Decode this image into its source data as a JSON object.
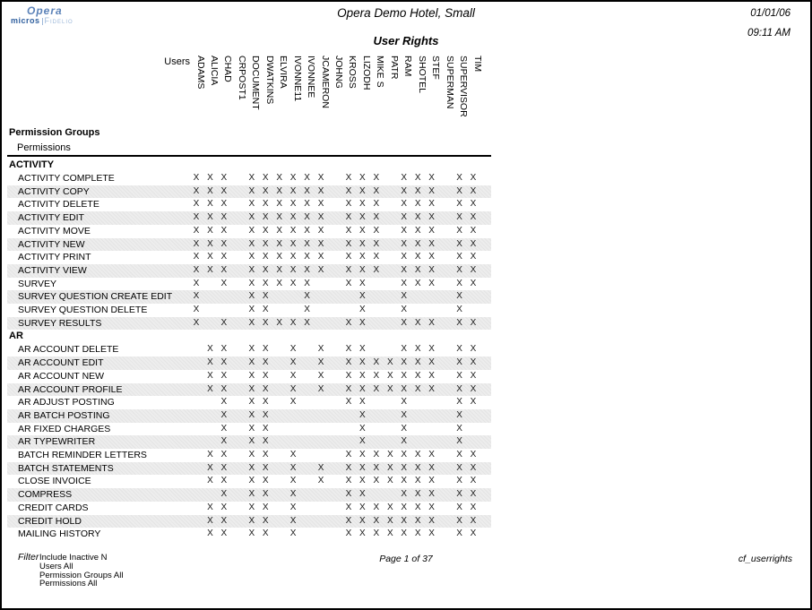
{
  "header": {
    "logo_line1": "Opera",
    "logo_micros": "micros",
    "logo_fidelio": "Fidelio",
    "hotel_title": "Opera Demo Hotel, Small",
    "report_title": "User Rights",
    "date": "01/01/06",
    "time": "09:11 AM"
  },
  "matrix": {
    "users_label": "Users",
    "mark": "X",
    "left_header_line1": "Permission Groups",
    "left_header_line2": "Permissions",
    "columns": [
      "ADAMS",
      "ALICIA",
      "CHAD",
      "CRPOST1",
      "DOCUMENT",
      "DWATKINS",
      "ELVIRA",
      "IVONNE11",
      "IVONNEE",
      "JCAMERON",
      "JOHNG",
      "KROSS",
      "LIZODH",
      "MIKE S",
      "PATR",
      "RAM",
      "SHOTEL",
      "STEF",
      "SUPERMAN",
      "SUPERVISOR",
      "TIM"
    ],
    "groups": [
      {
        "name": "ACTIVITY",
        "rows": [
          {
            "label": "ACTIVITY COMPLETE",
            "cols": [
              1,
              2,
              3,
              5,
              6,
              7,
              8,
              9,
              10,
              12,
              13,
              14,
              16,
              17,
              18,
              20,
              21
            ]
          },
          {
            "label": "ACTIVITY COPY",
            "cols": [
              1,
              2,
              3,
              5,
              6,
              7,
              8,
              9,
              10,
              12,
              13,
              14,
              16,
              17,
              18,
              20,
              21
            ]
          },
          {
            "label": "ACTIVITY DELETE",
            "cols": [
              1,
              2,
              3,
              5,
              6,
              7,
              8,
              9,
              10,
              12,
              13,
              14,
              16,
              17,
              18,
              20,
              21
            ]
          },
          {
            "label": "ACTIVITY EDIT",
            "cols": [
              1,
              2,
              3,
              5,
              6,
              7,
              8,
              9,
              10,
              12,
              13,
              14,
              16,
              17,
              18,
              20,
              21
            ]
          },
          {
            "label": "ACTIVITY MOVE",
            "cols": [
              1,
              2,
              3,
              5,
              6,
              7,
              8,
              9,
              10,
              12,
              13,
              14,
              16,
              17,
              18,
              20,
              21
            ]
          },
          {
            "label": "ACTIVITY NEW",
            "cols": [
              1,
              2,
              3,
              5,
              6,
              7,
              8,
              9,
              10,
              12,
              13,
              14,
              16,
              17,
              18,
              20,
              21
            ]
          },
          {
            "label": "ACTIVITY PRINT",
            "cols": [
              1,
              2,
              3,
              5,
              6,
              7,
              8,
              9,
              10,
              12,
              13,
              14,
              16,
              17,
              18,
              20,
              21
            ]
          },
          {
            "label": "ACTIVITY VIEW",
            "cols": [
              1,
              2,
              3,
              5,
              6,
              7,
              8,
              9,
              10,
              12,
              13,
              14,
              16,
              17,
              18,
              20,
              21
            ]
          },
          {
            "label": "SURVEY",
            "cols": [
              1,
              3,
              5,
              6,
              7,
              8,
              9,
              12,
              13,
              16,
              17,
              18,
              20,
              21
            ]
          },
          {
            "label": "SURVEY QUESTION CREATE EDIT",
            "cols": [
              1,
              5,
              6,
              9,
              13,
              16,
              20
            ]
          },
          {
            "label": "SURVEY QUESTION DELETE",
            "cols": [
              1,
              5,
              6,
              9,
              13,
              16,
              20
            ]
          },
          {
            "label": "SURVEY RESULTS",
            "cols": [
              1,
              3,
              5,
              6,
              7,
              8,
              9,
              12,
              13,
              16,
              17,
              18,
              20,
              21
            ]
          }
        ]
      },
      {
        "name": "AR",
        "rows": [
          {
            "label": "AR ACCOUNT DELETE",
            "cols": [
              2,
              3,
              5,
              6,
              8,
              10,
              12,
              13,
              16,
              17,
              18,
              20,
              21
            ]
          },
          {
            "label": "AR ACCOUNT EDIT",
            "cols": [
              2,
              3,
              5,
              6,
              8,
              10,
              12,
              13,
              14,
              15,
              16,
              17,
              18,
              20,
              21
            ]
          },
          {
            "label": "AR ACCOUNT NEW",
            "cols": [
              2,
              3,
              5,
              6,
              8,
              10,
              12,
              13,
              14,
              15,
              16,
              17,
              18,
              20,
              21
            ]
          },
          {
            "label": "AR ACCOUNT PROFILE",
            "cols": [
              2,
              3,
              5,
              6,
              8,
              10,
              12,
              13,
              14,
              15,
              16,
              17,
              18,
              20,
              21
            ]
          },
          {
            "label": "AR ADJUST POSTING",
            "cols": [
              3,
              5,
              6,
              8,
              12,
              13,
              16,
              20,
              21
            ]
          },
          {
            "label": "AR BATCH POSTING",
            "cols": [
              3,
              5,
              6,
              13,
              16,
              20
            ]
          },
          {
            "label": "AR FIXED CHARGES",
            "cols": [
              3,
              5,
              6,
              13,
              16,
              20
            ]
          },
          {
            "label": "AR TYPEWRITER",
            "cols": [
              3,
              5,
              6,
              13,
              16,
              20
            ]
          },
          {
            "label": "BATCH REMINDER LETTERS",
            "cols": [
              2,
              3,
              5,
              6,
              8,
              12,
              13,
              14,
              15,
              16,
              17,
              18,
              20,
              21
            ]
          },
          {
            "label": "BATCH STATEMENTS",
            "cols": [
              2,
              3,
              5,
              6,
              8,
              10,
              12,
              13,
              14,
              15,
              16,
              17,
              18,
              20,
              21
            ]
          },
          {
            "label": "CLOSE INVOICE",
            "cols": [
              2,
              3,
              5,
              6,
              8,
              10,
              12,
              13,
              14,
              15,
              16,
              17,
              18,
              20,
              21
            ]
          },
          {
            "label": "COMPRESS",
            "cols": [
              3,
              5,
              6,
              8,
              12,
              13,
              16,
              17,
              18,
              20,
              21
            ]
          },
          {
            "label": "CREDIT CARDS",
            "cols": [
              2,
              3,
              5,
              6,
              8,
              12,
              13,
              14,
              15,
              16,
              17,
              18,
              20,
              21
            ]
          },
          {
            "label": "CREDIT HOLD",
            "cols": [
              2,
              3,
              5,
              6,
              8,
              12,
              13,
              14,
              15,
              16,
              17,
              18,
              20,
              21
            ]
          },
          {
            "label": "MAILING HISTORY",
            "cols": [
              2,
              3,
              5,
              6,
              8,
              12,
              13,
              14,
              15,
              16,
              17,
              18,
              20,
              21
            ]
          }
        ]
      }
    ]
  },
  "footer": {
    "filter_label": "Filter",
    "filter_lines": [
      "Include Inactive N",
      "Users All",
      "Permission Groups All",
      "Permissions All"
    ],
    "page": "Page 1 of 37",
    "report_code": "cf_userrights"
  }
}
